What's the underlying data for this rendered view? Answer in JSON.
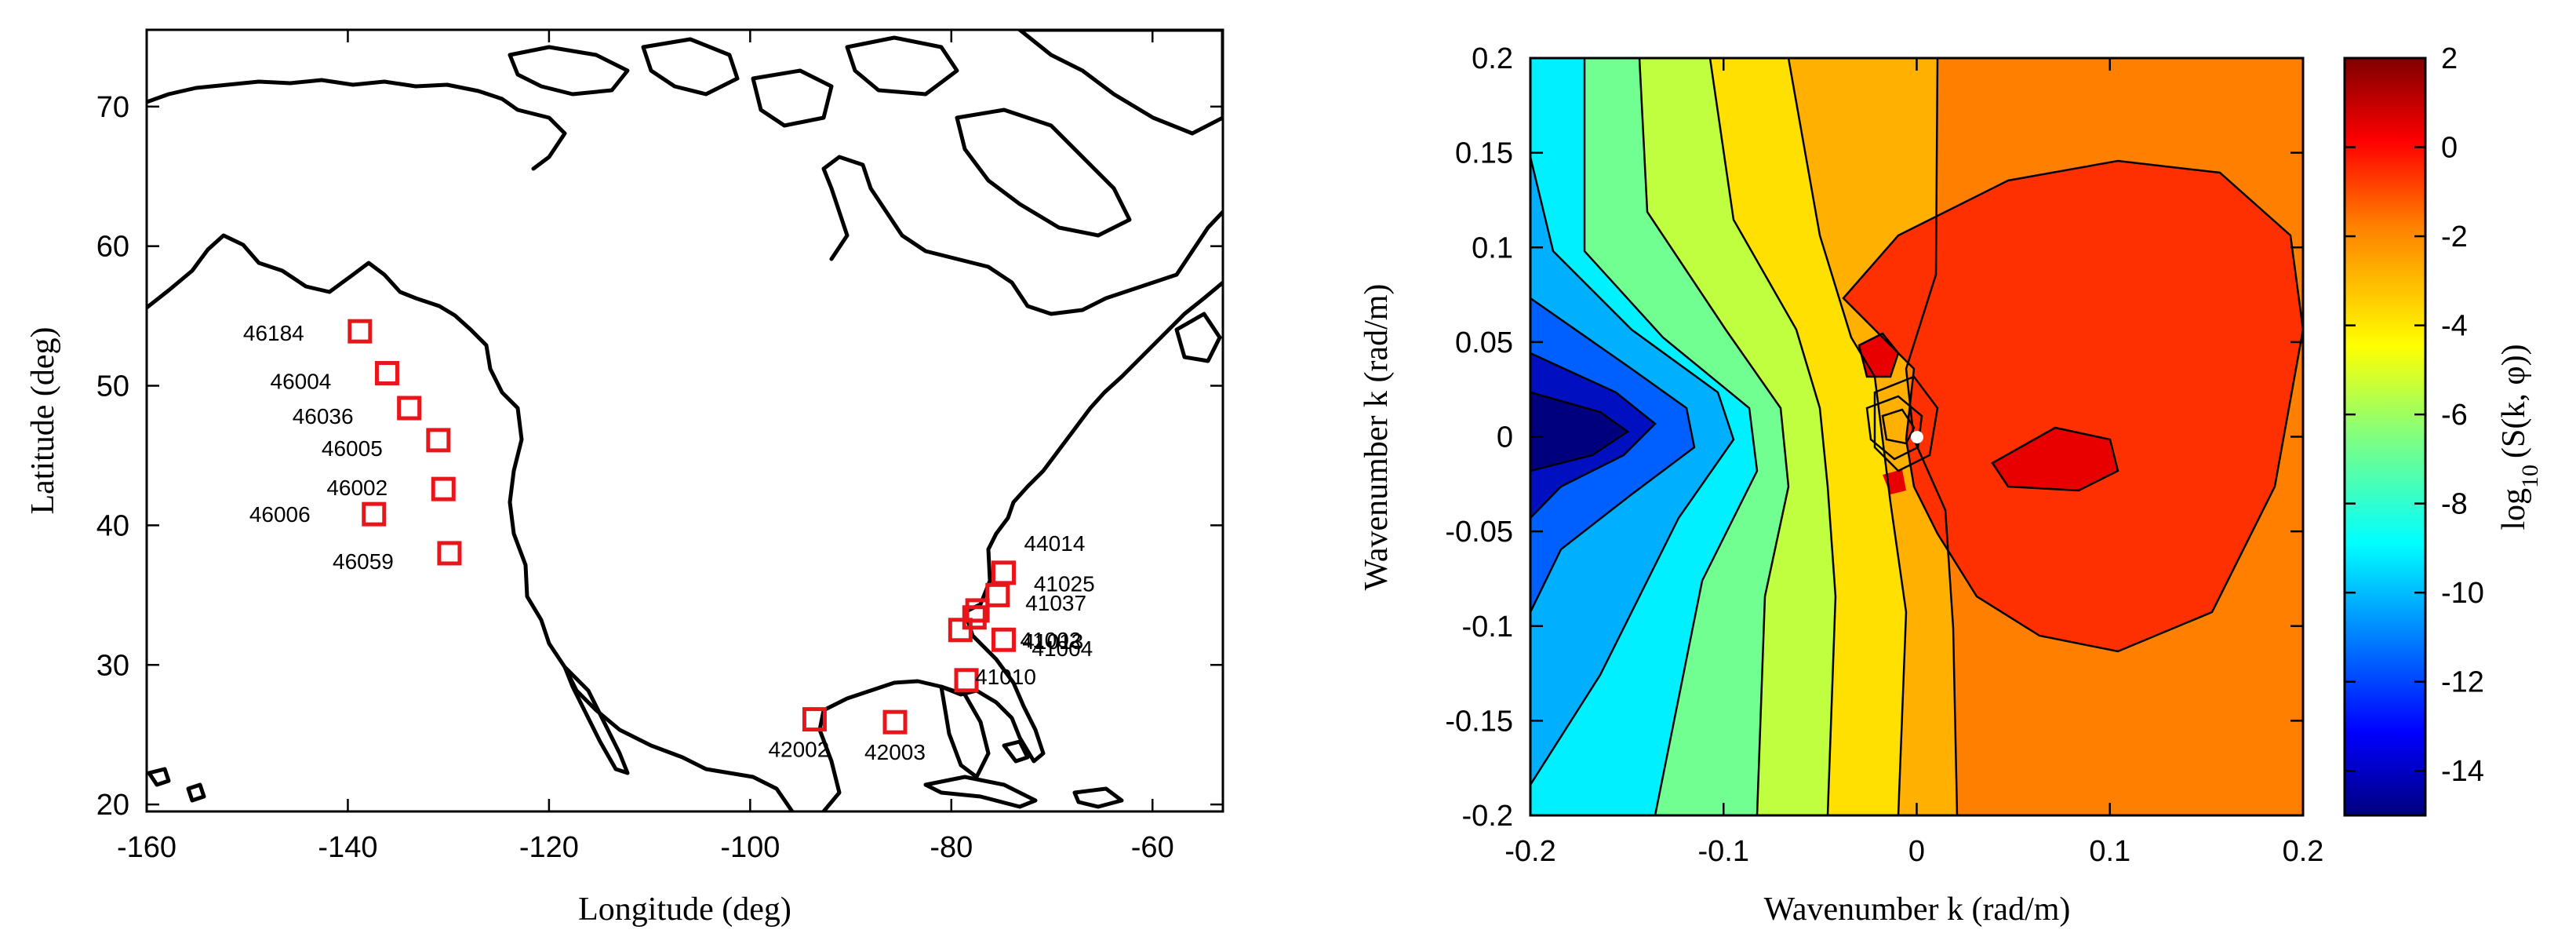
{
  "colors": {
    "station_marker": "#e8151b",
    "coastline": "#000000",
    "colormap": [
      "#00007f",
      "#0000ff",
      "#007fff",
      "#00ffff",
      "#7fff7f",
      "#ffff00",
      "#ff7f00",
      "#ff0000",
      "#7f0000"
    ]
  },
  "chart_data": [
    {
      "type": "scatter",
      "xlabel": "Longitude (deg)",
      "ylabel": "Latitude (deg)",
      "xlim": [
        -160,
        -53
      ],
      "ylim": [
        19.5,
        75.5
      ],
      "grid": false,
      "x_ticks": [
        "-160",
        "-140",
        "-120",
        "-100",
        "-80",
        "-60"
      ],
      "y_ticks": [
        "20",
        "30",
        "40",
        "50",
        "60",
        "70"
      ],
      "basemap": "North America coastline",
      "marker": "square",
      "points": [
        {
          "label": "46184",
          "x": -138.8,
          "y": 53.9
        },
        {
          "label": "46004",
          "x": -136.1,
          "y": 50.9
        },
        {
          "label": "46036",
          "x": -133.9,
          "y": 48.4
        },
        {
          "label": "46005",
          "x": -131.0,
          "y": 46.1
        },
        {
          "label": "46002",
          "x": -130.5,
          "y": 42.6
        },
        {
          "label": "46006",
          "x": -137.4,
          "y": 40.8
        },
        {
          "label": "46059",
          "x": -129.9,
          "y": 38.0
        },
        {
          "label": "44014",
          "x": -74.8,
          "y": 36.6
        },
        {
          "label": "41025",
          "x": -75.4,
          "y": 35.0
        },
        {
          "label": "41037",
          "x": -77.4,
          "y": 33.9
        },
        {
          "label": "41013",
          "x": -77.7,
          "y": 33.4
        },
        {
          "label": "41004",
          "x": -79.1,
          "y": 32.5
        },
        {
          "label": "41002",
          "x": -74.8,
          "y": 31.8
        },
        {
          "label": "41010",
          "x": -78.5,
          "y": 28.9
        },
        {
          "label": "42002",
          "x": -93.6,
          "y": 26.1
        },
        {
          "label": "42003",
          "x": -85.6,
          "y": 25.9
        }
      ]
    },
    {
      "type": "contour",
      "xlabel": "Wavenumber k (rad/m)",
      "ylabel": "Wavenumber k (rad/m)",
      "xlim": [
        -0.2,
        0.2
      ],
      "ylim": [
        -0.2,
        0.2
      ],
      "x_ticks": [
        "-0.2",
        "-0.1",
        "0",
        "0.1",
        "0.2"
      ],
      "y_ticks": [
        "0.2",
        "0.15",
        "0.1",
        "0.05",
        "0",
        "-0.05",
        "-0.1",
        "-0.15",
        "-0.2"
      ],
      "colorbar": {
        "label": "log10(S(k,φ))",
        "label_base": "log",
        "label_sub": "10",
        "label_arg": "(S(k, φ))",
        "range": [
          -15,
          2
        ],
        "ticks": [
          "2",
          "0",
          "-2",
          "-4",
          "-6",
          "-8",
          "-10",
          "-12",
          "-14"
        ]
      },
      "levels": [
        -15,
        -14,
        -13,
        -12,
        -11,
        -10,
        -9,
        -8,
        -7,
        -6,
        -5,
        -4,
        -3,
        -2,
        -1,
        0,
        1,
        2
      ],
      "features": {
        "max_level": 0.5,
        "min_level": -14.8,
        "peak_lobe_center": [
          0.07,
          -0.01
        ],
        "minimum_region_center": [
          -0.2,
          0.0
        ]
      }
    }
  ]
}
